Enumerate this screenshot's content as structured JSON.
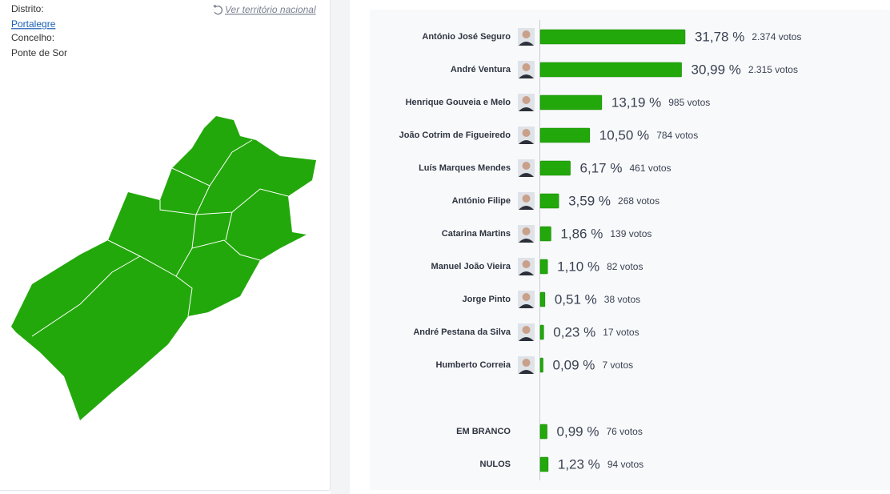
{
  "header": {
    "district_label": "Distrito:",
    "district": "Portalegre",
    "municipality_label": "Concelho:",
    "municipality": "Ponte de Sor",
    "national_link": "Ver território nacional"
  },
  "chart_data": [
    {
      "type": "bar",
      "color": "#22a80a",
      "categories": [
        "António José Seguro",
        "André Ventura",
        "Henrique Gouveia e Melo",
        "João Cotrim de Figueiredo",
        "Luís Marques Mendes",
        "António Filipe",
        "Catarina Martins",
        "Manuel João Vieira",
        "Jorge Pinto",
        "André Pestana da Silva",
        "Humberto Correia"
      ],
      "values": [
        31.78,
        30.99,
        13.19,
        10.5,
        6.17,
        3.59,
        1.86,
        1.1,
        0.51,
        0.23,
        0.09
      ],
      "value_labels": [
        "31,78 %",
        "30,99 %",
        "13,19 %",
        "10,50 %",
        "6,17 %",
        "3,59 %",
        "1,86 %",
        "1,10 %",
        "0,51 %",
        "0,23 %",
        "0,09 %"
      ],
      "votes": [
        2374,
        2315,
        985,
        784,
        461,
        268,
        139,
        82,
        38,
        17,
        7
      ],
      "vote_labels": [
        "2.374 votos",
        "2.315 votos",
        "985 votos",
        "784 votos",
        "461 votos",
        "268 votos",
        "139 votos",
        "82 votos",
        "38 votos",
        "17 votos",
        "7 votos"
      ]
    },
    {
      "type": "bar",
      "color": "#22a80a",
      "categories": [
        "EM BRANCO",
        "NULOS"
      ],
      "values": [
        0.99,
        1.23
      ],
      "value_labels": [
        "0,99 %",
        "1,23 %"
      ],
      "votes": [
        76,
        94
      ],
      "vote_labels": [
        "76 votos",
        "94 votos"
      ]
    }
  ]
}
